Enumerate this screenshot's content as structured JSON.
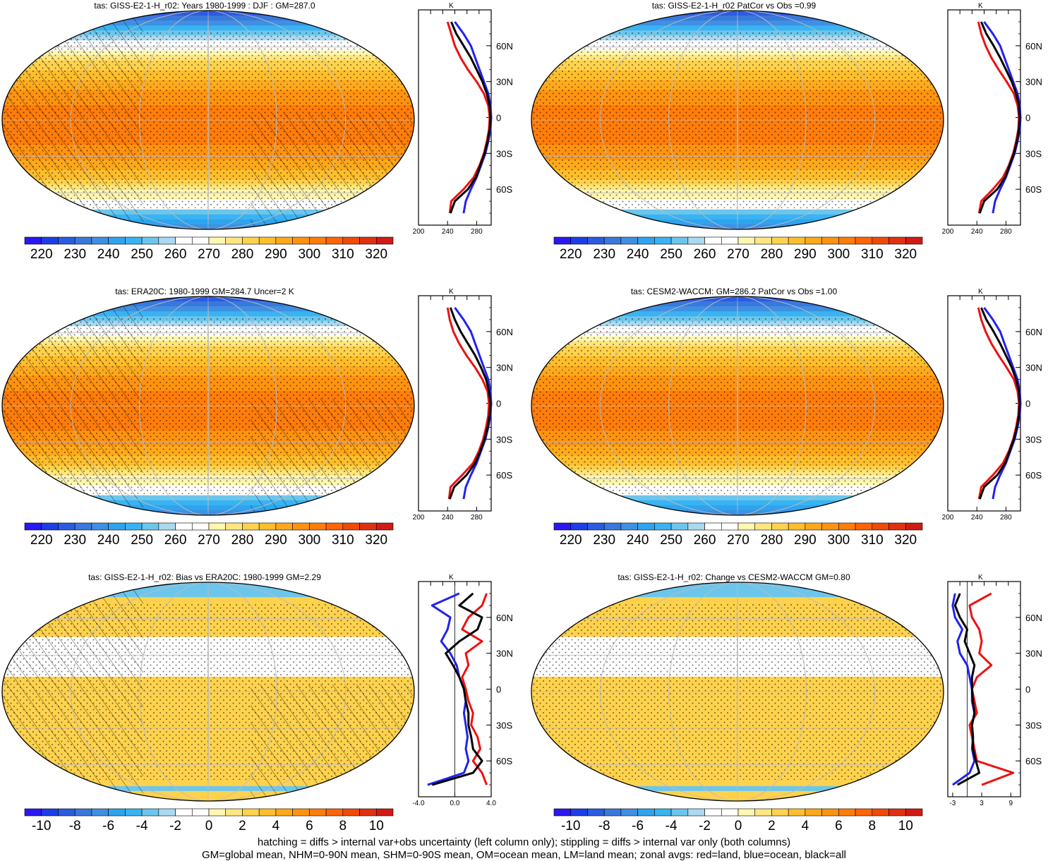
{
  "figure": {
    "footnote_line1": "hatching = diffs > internal var+obs uncertainty (left column only); stippling = diffs > internal var only (both columns)",
    "footnote_line2": "GM=global mean, NHM=0-90N mean, SHM=0-90S mean, OM=ocean mean, LM=land mean; zonal avgs: red=land, blue=ocean, black=all"
  },
  "colors": {
    "land": "#ee1111",
    "ocean": "#2222ee",
    "all": "#000000",
    "abs_scale": [
      "#2a18f0",
      "#1d3ee6",
      "#2a5ce0",
      "#3a78dc",
      "#3f90e2",
      "#2ea4ee",
      "#39b3f2",
      "#6cc6ec",
      "#aad9f0",
      "#ffffff",
      "#ffffff",
      "#fff6b0",
      "#ffe680",
      "#ffd24d",
      "#ffbe2c",
      "#ffa91a",
      "#ff9310",
      "#ff7d0a",
      "#ff6406",
      "#f04a06",
      "#e03010",
      "#d01a14"
    ],
    "diff_scale": [
      "#2a18f0",
      "#1d3ee6",
      "#2a5ce0",
      "#3a78dc",
      "#3f90e2",
      "#2ea4ee",
      "#39b3f2",
      "#6cc6ec",
      "#aad9f0",
      "#ffffff",
      "#ffffff",
      "#fff6b0",
      "#ffe680",
      "#ffd24d",
      "#ffbe2c",
      "#ffa91a",
      "#ff9310",
      "#ff7d0a",
      "#ff6406",
      "#f04a06",
      "#e03010",
      "#d01a14"
    ]
  },
  "chart_data": [
    {
      "id": "p1",
      "type": "heatmap",
      "title": "tas: GISS-E2-1-H_r02: Years 1980-1999 : DJF : GM=287.0",
      "colorbar_labels": [
        "220",
        "230",
        "240",
        "250",
        "260",
        "270",
        "280",
        "290",
        "300",
        "310",
        "320"
      ],
      "colormap": "abs_scale",
      "overlay": "hatching+stippling",
      "zonal_profile": {
        "unit": "K",
        "y_tick_labels": [
          "60N",
          "30N",
          "0",
          "30S",
          "60S"
        ],
        "x_tick_labels": [
          "200",
          "240",
          "280"
        ],
        "xlim": [
          200,
          300
        ],
        "lat": [
          80,
          70,
          60,
          50,
          40,
          30,
          20,
          10,
          0,
          -10,
          -20,
          -30,
          -40,
          -50,
          -60,
          -70,
          -80
        ],
        "series": [
          {
            "color": "land",
            "values": [
              240,
              245,
              250,
              258,
              268,
              280,
              290,
              296,
              298,
              297,
              294,
              290,
              284,
              276,
              262,
              245,
              243
            ]
          },
          {
            "color": "ocean",
            "values": [
              250,
              262,
              272,
              278,
              284,
              290,
              296,
              299,
              300,
              299,
              296,
              292,
              286,
              280,
              272,
              265,
              262
            ]
          },
          {
            "color": "all",
            "values": [
              245,
              252,
              262,
              272,
              280,
              288,
              294,
              298,
              299,
              298,
              295,
              291,
              285,
              279,
              268,
              250,
              244
            ]
          }
        ]
      }
    },
    {
      "id": "p2",
      "type": "heatmap",
      "title": "tas: GISS-E2-1-H_r02 PatCor vs Obs =0.99",
      "colorbar_labels": [
        "220",
        "230",
        "240",
        "250",
        "260",
        "270",
        "280",
        "290",
        "300",
        "310",
        "320"
      ],
      "colormap": "abs_scale",
      "overlay": "stippling",
      "zonal_profile": {
        "unit": "K",
        "y_tick_labels": [
          "60N",
          "30N",
          "0",
          "30S",
          "60S"
        ],
        "x_tick_labels": [
          "200",
          "240",
          "280"
        ],
        "xlim": [
          200,
          300
        ],
        "lat": [
          80,
          70,
          60,
          50,
          40,
          30,
          20,
          10,
          0,
          -10,
          -20,
          -30,
          -40,
          -50,
          -60,
          -70,
          -80
        ],
        "series": [
          {
            "color": "land",
            "values": [
              242,
              246,
              252,
              260,
              270,
              281,
              291,
              296,
              298,
              297,
              294,
              290,
              284,
              276,
              262,
              246,
              243
            ]
          },
          {
            "color": "ocean",
            "values": [
              250,
              262,
              272,
              278,
              284,
              290,
              296,
              299,
              300,
              299,
              296,
              292,
              286,
              280,
              272,
              265,
              262
            ]
          },
          {
            "color": "all",
            "values": [
              246,
              253,
              263,
              272,
              280,
              288,
              294,
              298,
              299,
              298,
              295,
              291,
              285,
              279,
              268,
              250,
              244
            ]
          }
        ]
      }
    },
    {
      "id": "p3",
      "type": "heatmap",
      "title": "tas: ERA20C: 1980-1999 GM=284.7 Uncer=2 K",
      "colorbar_labels": [
        "220",
        "230",
        "240",
        "250",
        "260",
        "270",
        "280",
        "290",
        "300",
        "310",
        "320"
      ],
      "colormap": "abs_scale",
      "overlay": "hatching+stippling",
      "zonal_profile": {
        "unit": "K",
        "y_tick_labels": [
          "60N",
          "30N",
          "0",
          "30S",
          "60S"
        ],
        "x_tick_labels": [
          "200",
          "240",
          "280"
        ],
        "xlim": [
          200,
          300
        ],
        "lat": [
          80,
          70,
          60,
          50,
          40,
          30,
          20,
          10,
          0,
          -10,
          -20,
          -30,
          -40,
          -50,
          -60,
          -70,
          -80
        ],
        "series": [
          {
            "color": "land",
            "values": [
              240,
              243,
              248,
              256,
              266,
              278,
              288,
              295,
              297,
              296,
              293,
              289,
              283,
              275,
              260,
              244,
              242
            ]
          },
          {
            "color": "ocean",
            "values": [
              250,
              262,
              272,
              278,
              284,
              290,
              296,
              299,
              300,
              299,
              296,
              292,
              286,
              280,
              272,
              265,
              262
            ]
          },
          {
            "color": "all",
            "values": [
              244,
              250,
              258,
              268,
              278,
              286,
              293,
              297,
              299,
              298,
              295,
              291,
              285,
              278,
              266,
              249,
              243
            ]
          }
        ]
      }
    },
    {
      "id": "p4",
      "type": "heatmap",
      "title": "tas: CESM2-WACCM: GM=286.2 PatCor vs Obs =1.00",
      "colorbar_labels": [
        "220",
        "230",
        "240",
        "250",
        "260",
        "270",
        "280",
        "290",
        "300",
        "310",
        "320"
      ],
      "colormap": "abs_scale",
      "overlay": "stippling",
      "zonal_profile": {
        "unit": "K",
        "y_tick_labels": [
          "60N",
          "30N",
          "0",
          "30S",
          "60S"
        ],
        "x_tick_labels": [
          "200",
          "240",
          "280"
        ],
        "xlim": [
          200,
          300
        ],
        "lat": [
          80,
          70,
          60,
          50,
          40,
          30,
          20,
          10,
          0,
          -10,
          -20,
          -30,
          -40,
          -50,
          -60,
          -70,
          -80
        ],
        "series": [
          {
            "color": "land",
            "values": [
              242,
              246,
              252,
              260,
              270,
              281,
              291,
              296,
              298,
              297,
              294,
              290,
              284,
              276,
              262,
              246,
              243
            ]
          },
          {
            "color": "ocean",
            "values": [
              250,
              262,
              272,
              278,
              284,
              290,
              296,
              299,
              300,
              299,
              296,
              292,
              286,
              280,
              272,
              265,
              262
            ]
          },
          {
            "color": "all",
            "values": [
              246,
              253,
              263,
              272,
              280,
              288,
              294,
              298,
              299,
              298,
              295,
              291,
              285,
              279,
              268,
              250,
              244
            ]
          }
        ]
      }
    },
    {
      "id": "p5",
      "type": "heatmap",
      "title": "tas: GISS-E2-1-H_r02: Bias vs ERA20C: 1980-1999 GM=2.29",
      "colorbar_labels": [
        "-10",
        "-8",
        "-6",
        "-4",
        "-2",
        "0",
        "2",
        "4",
        "6",
        "8",
        "10"
      ],
      "colormap": "diff_scale",
      "overlay": "hatching+stippling",
      "zonal_profile": {
        "unit": "K",
        "y_tick_labels": [
          "60N",
          "30N",
          "0",
          "30S",
          "60S"
        ],
        "x_tick_labels": [
          "-4.0",
          "0.0",
          "4.0"
        ],
        "xlim": [
          -4,
          4
        ],
        "lat": [
          80,
          70,
          60,
          50,
          40,
          30,
          20,
          10,
          0,
          -10,
          -20,
          -30,
          -40,
          -50,
          -60,
          -70,
          -80
        ],
        "series": [
          {
            "color": "land",
            "values": [
              3.5,
              3.0,
              1.5,
              0.8,
              3.0,
              1.2,
              1.5,
              0.8,
              1.2,
              1.5,
              2.0,
              1.8,
              2.5,
              2.8,
              2.0,
              3.0,
              3.5
            ]
          },
          {
            "color": "ocean",
            "values": [
              0.5,
              -2.5,
              -0.5,
              -0.8,
              -1.5,
              -0.5,
              0.2,
              0.5,
              1.0,
              1.2,
              1.0,
              1.2,
              1.4,
              1.2,
              1.5,
              1.0,
              -3.0
            ]
          },
          {
            "color": "all",
            "values": [
              2.0,
              0.5,
              3.0,
              2.5,
              0.5,
              -1.0,
              -0.2,
              0.5,
              1.0,
              1.2,
              1.5,
              1.5,
              1.8,
              2.0,
              3.0,
              2.0,
              -2.5
            ]
          }
        ]
      }
    },
    {
      "id": "p6",
      "type": "heatmap",
      "title": "tas: GISS-E2-1-H_r02: Change vs CESM2-WACCM GM=0.80",
      "colorbar_labels": [
        "-10",
        "-8",
        "-6",
        "-4",
        "-2",
        "0",
        "2",
        "4",
        "6",
        "8",
        "10"
      ],
      "colormap": "diff_scale",
      "overlay": "stippling",
      "zonal_profile": {
        "unit": "K",
        "y_tick_labels": [
          "60N",
          "30N",
          "0",
          "30S",
          "60S"
        ],
        "x_tick_labels": [
          "-3",
          "3",
          "9"
        ],
        "xlim": [
          -4,
          11
        ],
        "lat": [
          80,
          70,
          60,
          50,
          40,
          30,
          20,
          10,
          0,
          -10,
          -20,
          -30,
          -40,
          -50,
          -60,
          -70,
          -80
        ],
        "series": [
          {
            "color": "land",
            "values": [
              5.0,
              0.5,
              1.0,
              2.5,
              3.0,
              2.5,
              5.0,
              2.0,
              1.0,
              1.5,
              2.0,
              0.5,
              1.0,
              1.5,
              2.0,
              9.5,
              3.0
            ]
          },
          {
            "color": "ocean",
            "values": [
              -2.5,
              -3.0,
              -2.5,
              -1.0,
              -2.0,
              -1.5,
              0.0,
              0.5,
              1.0,
              1.0,
              1.5,
              1.0,
              1.2,
              1.0,
              1.5,
              0.5,
              -3.0
            ]
          },
          {
            "color": "all",
            "values": [
              -1.5,
              -2.5,
              -1.5,
              0.0,
              -0.5,
              0.5,
              1.5,
              1.0,
              1.0,
              1.2,
              1.5,
              1.0,
              1.2,
              1.2,
              1.8,
              2.5,
              -2.0
            ]
          }
        ]
      }
    }
  ]
}
